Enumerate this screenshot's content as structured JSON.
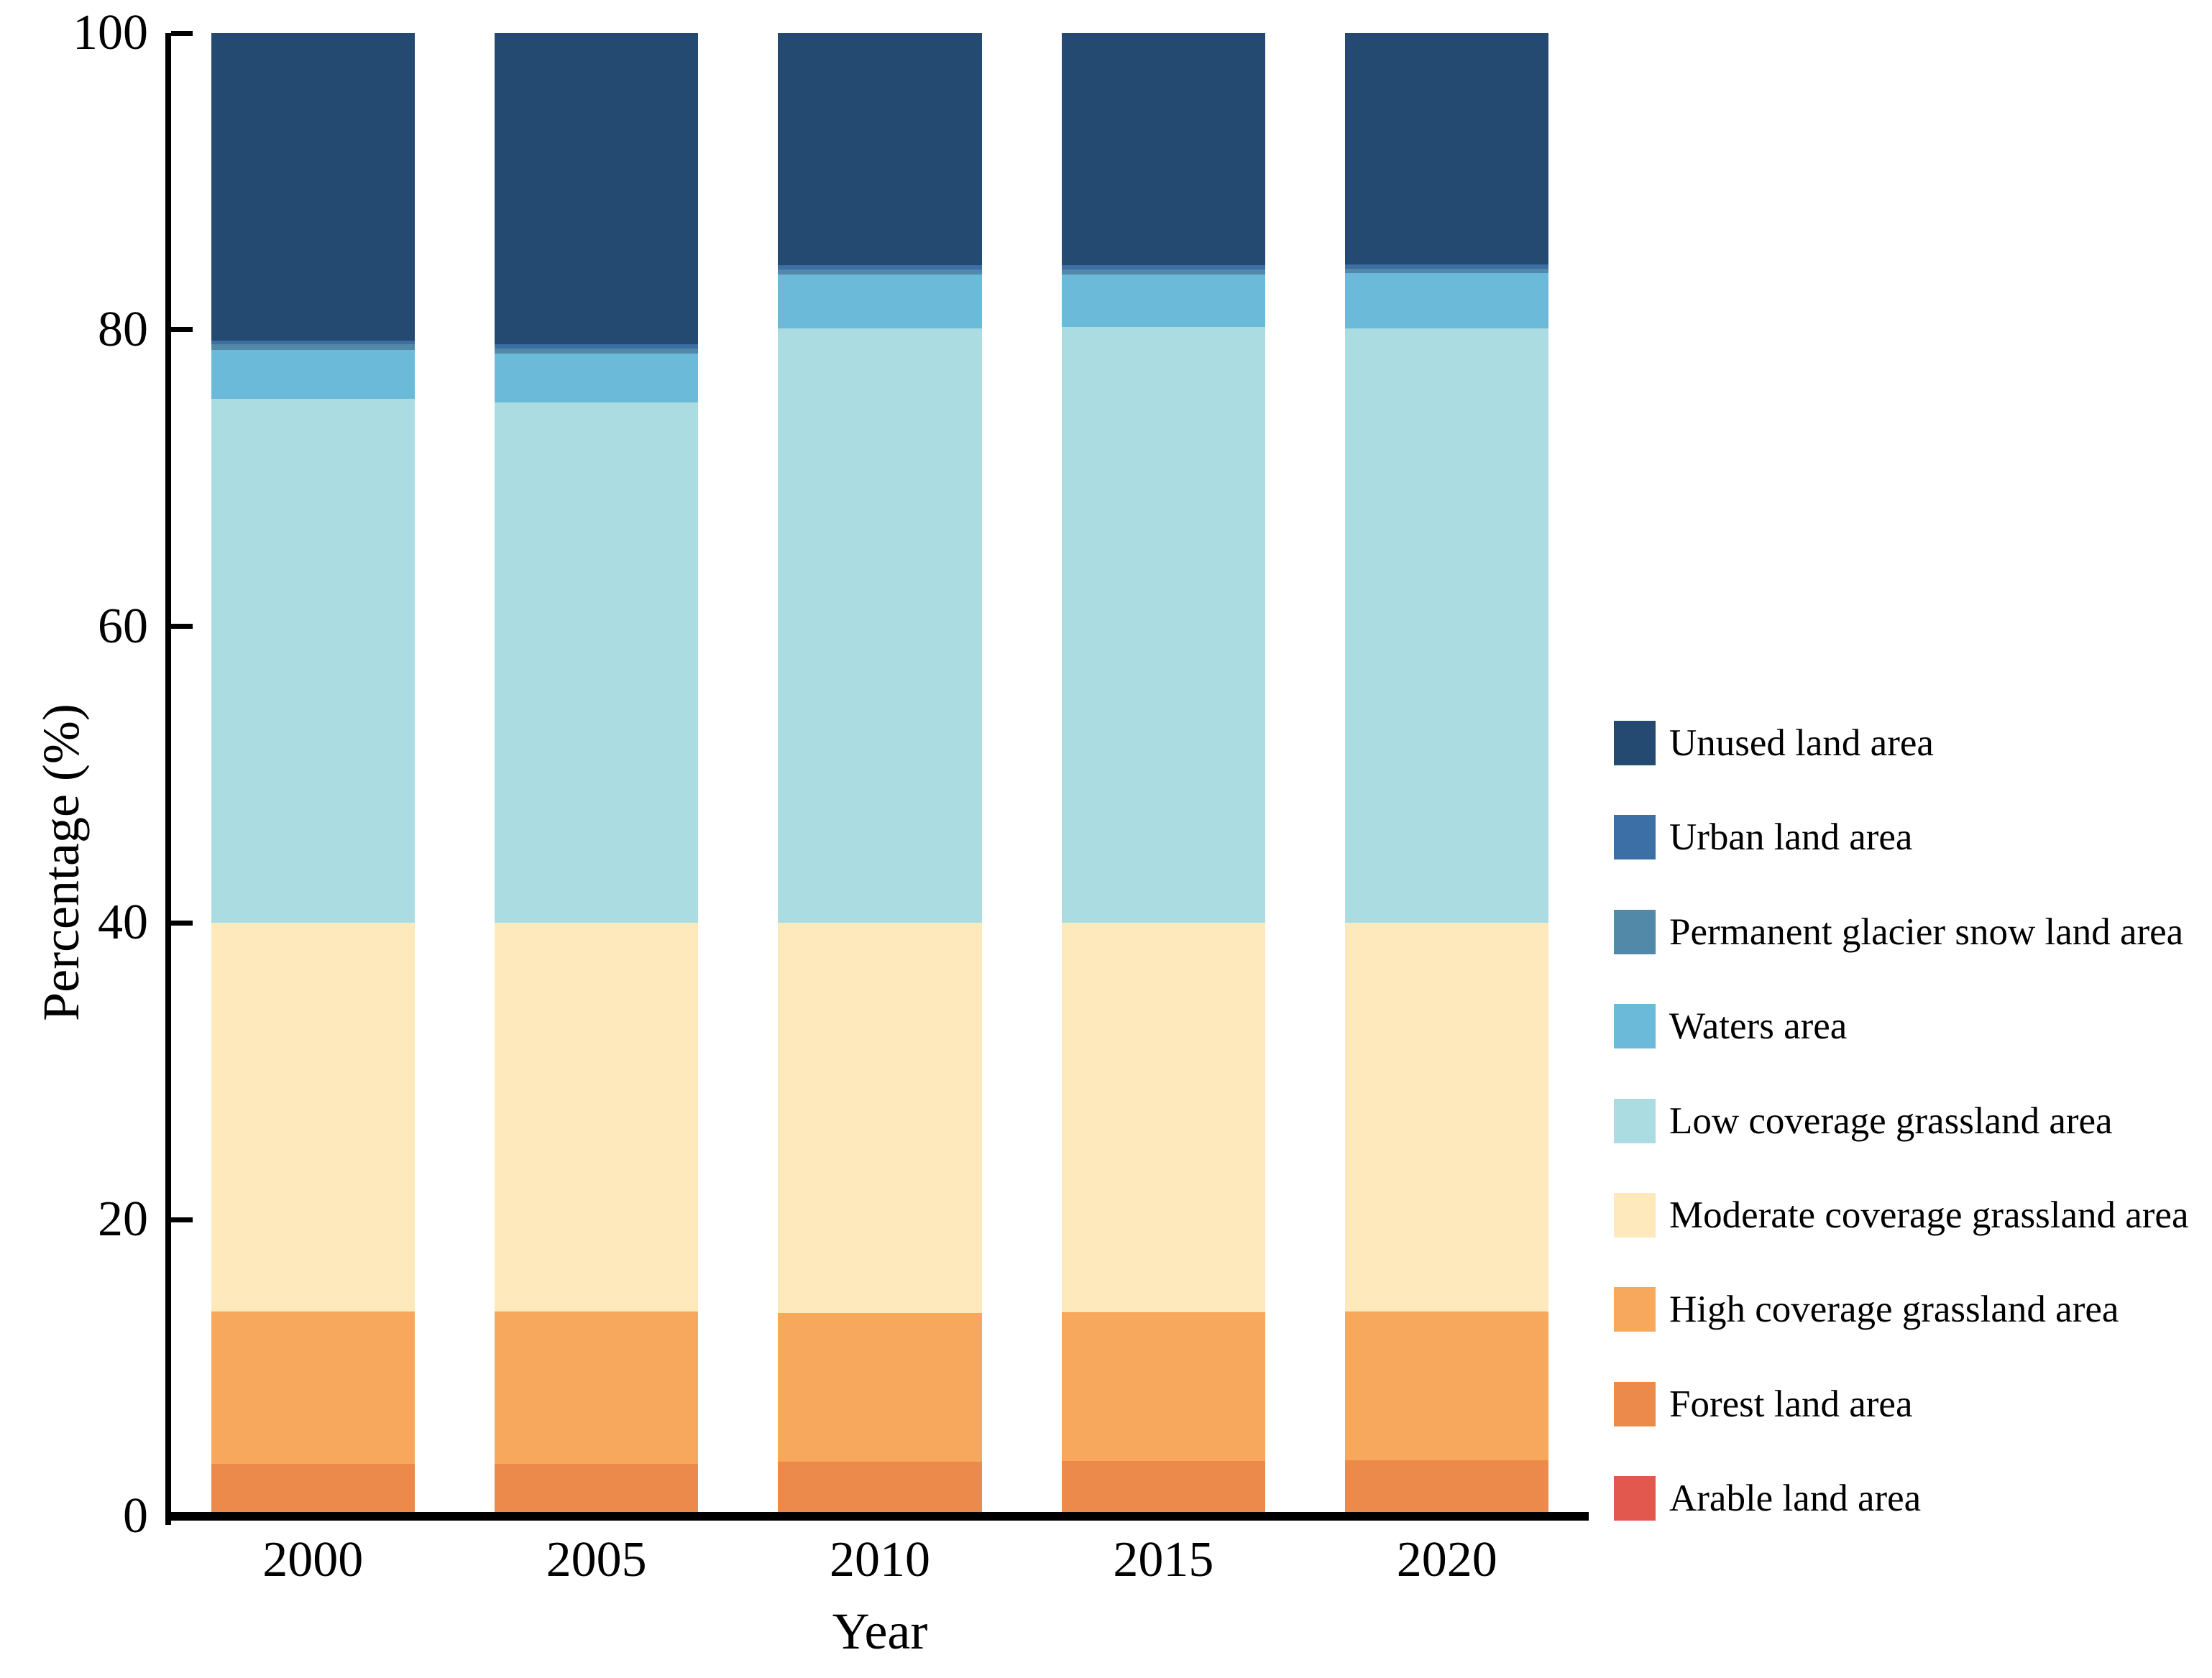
{
  "chart_data": {
    "type": "bar",
    "stacked": true,
    "title": "",
    "xlabel": "Year",
    "ylabel": "Percentage (%)",
    "categories": [
      "2000",
      "2005",
      "2010",
      "2015",
      "2020"
    ],
    "y_ticks": [
      0,
      20,
      40,
      60,
      80,
      100
    ],
    "ylim": [
      0,
      100
    ],
    "grid": false,
    "legend_position": "right-outside",
    "bar_width_ratio": 0.718,
    "axis_color": "#000000",
    "series_bottom_to_top": [
      {
        "name": "Arable land area",
        "color": "#E2584F",
        "values": [
          0.05,
          0.05,
          0.05,
          0.05,
          0.05
        ]
      },
      {
        "name": "Forest land area",
        "color": "#EC8A4B",
        "values": [
          3.5,
          3.5,
          3.65,
          3.7,
          3.75
        ]
      },
      {
        "name": "High coverage grassland area",
        "color": "#F7A85C",
        "values": [
          10.25,
          10.25,
          10.0,
          10.0,
          10.0
        ]
      },
      {
        "name": "Moderate coverage grassland area",
        "color": "#FDE9BC",
        "values": [
          26.2,
          26.2,
          26.3,
          26.25,
          26.2
        ]
      },
      {
        "name": "Low coverage grassland area",
        "color": "#AADCE2",
        "values": [
          35.35,
          35.1,
          40.1,
          40.2,
          40.1
        ]
      },
      {
        "name": "Waters area",
        "color": "#6CBAD9",
        "values": [
          3.3,
          3.3,
          3.6,
          3.5,
          3.7
        ]
      },
      {
        "name": "Permanent glacier snow land area",
        "color": "#5288A8",
        "values": [
          0.35,
          0.35,
          0.35,
          0.35,
          0.3
        ]
      },
      {
        "name": "Urban land area",
        "color": "#3B6FA5",
        "values": [
          0.25,
          0.25,
          0.3,
          0.3,
          0.3
        ]
      },
      {
        "name": "Unused land area",
        "color": "#244A72",
        "values": [
          20.75,
          21.0,
          15.65,
          15.65,
          15.6
        ]
      }
    ],
    "legend_top_to_bottom": [
      "Unused land area",
      "Urban land area",
      "Permanent glacier snow land area",
      "Waters area",
      "Low coverage grassland area",
      "Moderate coverage grassland area",
      "High coverage grassland area",
      "Forest land area",
      "Arable land area"
    ]
  }
}
